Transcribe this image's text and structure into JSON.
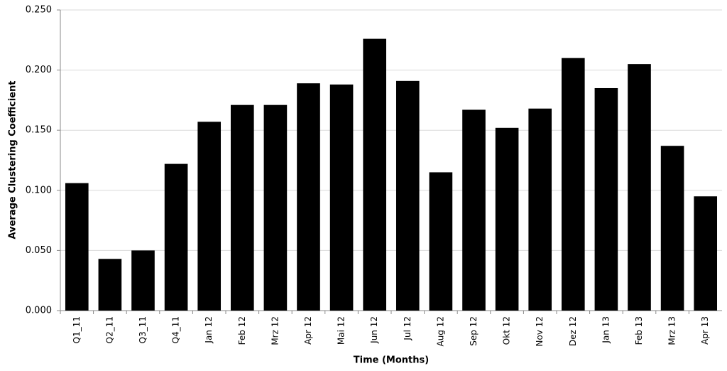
{
  "chart_data": {
    "type": "bar",
    "x_label": "Time (Months)",
    "y_label": "Average Clustering Coefficient",
    "categories": [
      "Q1_11",
      "Q2_11",
      "Q3_11",
      "Q4_11",
      "Jan 12",
      "Feb 12",
      "Mrz 12",
      "Apr 12",
      "Mai 12",
      "Jun 12",
      "Jul 12",
      "Aug 12",
      "Sep 12",
      "Okt 12",
      "Nov 12",
      "Dez 12",
      "Jan 13",
      "Feb 13",
      "Mrz 13",
      "Apr 13"
    ],
    "values": [
      0.106,
      0.043,
      0.05,
      0.122,
      0.157,
      0.171,
      0.171,
      0.189,
      0.188,
      0.226,
      0.191,
      0.115,
      0.167,
      0.152,
      0.168,
      0.21,
      0.185,
      0.205,
      0.137,
      0.095
    ],
    "color": "#000000",
    "ylim": [
      0,
      0.25
    ],
    "yticks": [
      {
        "value": 0,
        "label": "0.000"
      },
      {
        "value": 0.05,
        "label": "0.050"
      },
      {
        "value": 0.1,
        "label": "0.100"
      },
      {
        "value": 0.15,
        "label": "0.150"
      },
      {
        "value": 0.2,
        "label": "0.200"
      },
      {
        "value": 0.25,
        "label": "0.250"
      }
    ],
    "grid": true
  }
}
